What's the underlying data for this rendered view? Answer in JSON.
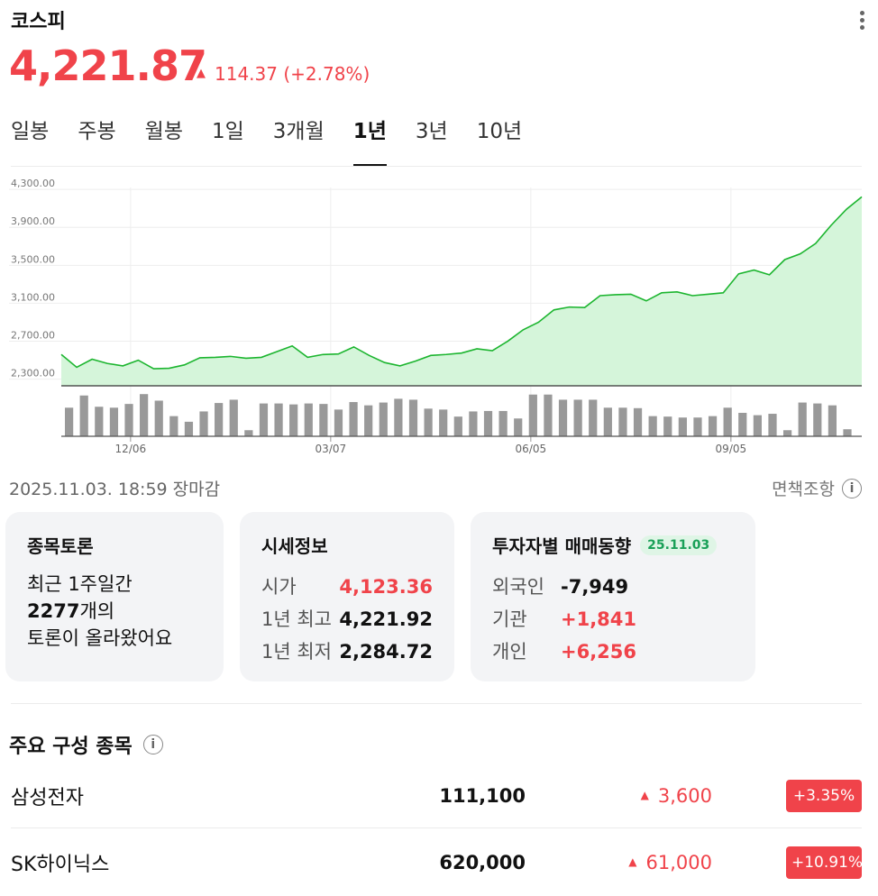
{
  "header": {
    "title": "코스피"
  },
  "quote": {
    "price": "4,221.87",
    "change": "114.37",
    "change_pct": "(+2.78%)",
    "direction": "up"
  },
  "tabs": [
    {
      "label": "일봉",
      "active": false
    },
    {
      "label": "주봉",
      "active": false
    },
    {
      "label": "월봉",
      "active": false
    },
    {
      "label": "1일",
      "active": false
    },
    {
      "label": "3개월",
      "active": false
    },
    {
      "label": "1년",
      "active": true
    },
    {
      "label": "3년",
      "active": false
    },
    {
      "label": "10년",
      "active": false
    }
  ],
  "chart_data": {
    "type": "area",
    "line_color": "#1cb52f",
    "fill_color": "#d5f5da",
    "y_ticks": [
      "4,300.00",
      "3,900.00",
      "3,500.00",
      "3,100.00",
      "2,700.00",
      "2,300.00"
    ],
    "y_tick_values": [
      4300,
      3900,
      3500,
      3100,
      2700,
      2300
    ],
    "ylim": [
      2230,
      4320
    ],
    "x_tick_labels": [
      "12/06",
      "03/07",
      "06/05",
      "09/05"
    ],
    "x_tick_index": [
      4.5,
      17.5,
      30.5,
      43.5
    ],
    "values": [
      2560,
      2425,
      2510,
      2465,
      2440,
      2500,
      2410,
      2415,
      2450,
      2525,
      2530,
      2540,
      2520,
      2530,
      2590,
      2650,
      2530,
      2560,
      2565,
      2640,
      2550,
      2475,
      2440,
      2490,
      2550,
      2560,
      2575,
      2620,
      2600,
      2700,
      2820,
      2900,
      3030,
      3060,
      3055,
      3180,
      3190,
      3195,
      3125,
      3210,
      3220,
      3180,
      3195,
      3210,
      3410,
      3450,
      3400,
      3560,
      3620,
      3730,
      3920,
      4090,
      4221.87
    ],
    "volume": [
      0.61,
      0.87,
      0.63,
      0.61,
      0.69,
      0.9,
      0.76,
      0.43,
      0.31,
      0.53,
      0.71,
      0.78,
      0.13,
      0.7,
      0.7,
      0.68,
      0.7,
      0.69,
      0.57,
      0.73,
      0.66,
      0.72,
      0.8,
      0.78,
      0.59,
      0.57,
      0.42,
      0.53,
      0.54,
      0.54,
      0.38,
      0.89,
      0.89,
      0.78,
      0.78,
      0.78,
      0.61,
      0.61,
      0.6,
      0.43,
      0.42,
      0.4,
      0.4,
      0.43,
      0.61,
      0.5,
      0.45,
      0.48,
      0.13,
      0.72,
      0.7,
      0.66,
      0.15
    ]
  },
  "timestamp": "2025.11.03. 18:59 장마감",
  "disclaimer": "면책조항",
  "cards": {
    "discussion": {
      "title": "종목토론",
      "line1": "최근 1주일간",
      "count": "2277",
      "count_suffix": "개의",
      "line3": "토론이 올라왔어요"
    },
    "price_info": {
      "title": "시세정보",
      "rows": [
        {
          "label": "시가",
          "value": "4,123.36",
          "color": "#f0434a"
        },
        {
          "label": "1년 최고",
          "value": "4,221.92",
          "color": "#111111"
        },
        {
          "label": "1년 최저",
          "value": "2,284.72",
          "color": "#111111"
        }
      ]
    },
    "investors": {
      "title": "투자자별 매매동향",
      "date_badge": "25.11.03",
      "rows": [
        {
          "label": "외국인",
          "value": "-7,949",
          "color": "#111111"
        },
        {
          "label": "기관",
          "value": "+1,841",
          "color": "#f0434a"
        },
        {
          "label": "개인",
          "value": "+6,256",
          "color": "#f0434a"
        }
      ]
    }
  },
  "constituents": {
    "title": "주요 구성 종목",
    "items": [
      {
        "name": "삼성전자",
        "price": "111,100",
        "change": "3,600",
        "pct": "+3.35%"
      },
      {
        "name": "SK하이닉스",
        "price": "620,000",
        "change": "61,000",
        "pct": "+10.91%"
      }
    ]
  }
}
